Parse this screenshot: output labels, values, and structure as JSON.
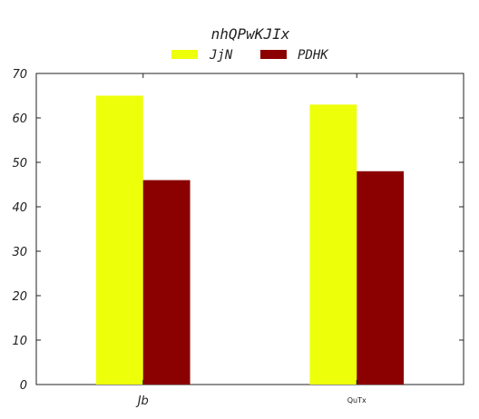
{
  "chart_data": {
    "type": "bar",
    "title": "nhQPwKJIx",
    "xlabel": "",
    "ylabel": "",
    "categories": [
      "Jb",
      "QuTx"
    ],
    "series": [
      {
        "name": "JjN",
        "values": [
          65,
          63
        ],
        "color": "#eeff0a"
      },
      {
        "name": "PDHK",
        "values": [
          46,
          48
        ],
        "color": "#8b0000"
      }
    ],
    "ylim": [
      0,
      70
    ],
    "yticks": [
      0,
      10,
      20,
      30,
      40,
      50,
      60,
      70
    ],
    "grid": false,
    "legend_position": "top-center"
  }
}
